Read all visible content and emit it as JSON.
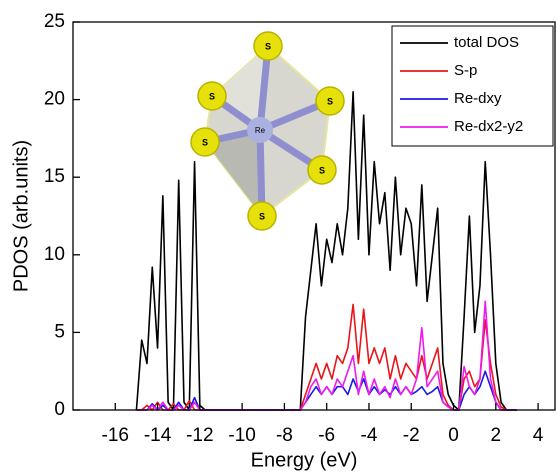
{
  "chart_data": {
    "type": "line",
    "xlabel": "Energy (eV)",
    "ylabel": "PDOS (arb.units)",
    "x": [
      -15,
      -14.75,
      -14.5,
      -14.25,
      -14,
      -13.75,
      -13.5,
      -13.25,
      -13,
      -12.75,
      -12.5,
      -12.25,
      -12,
      -11.75,
      -11.5,
      -11.25,
      -11,
      -10.75,
      -10.5,
      -10.25,
      -10,
      -9.75,
      -9.5,
      -9.25,
      -9,
      -8.75,
      -8.5,
      -8.25,
      -8,
      -7.75,
      -7.5,
      -7.25,
      -7,
      -6.75,
      -6.5,
      -6.25,
      -6,
      -5.75,
      -5.5,
      -5.25,
      -5,
      -4.75,
      -4.5,
      -4.25,
      -4,
      -3.75,
      -3.5,
      -3.25,
      -3,
      -2.75,
      -2.5,
      -2.25,
      -2,
      -1.75,
      -1.5,
      -1.25,
      -1,
      -0.75,
      -0.5,
      -0.25,
      0,
      0.25,
      0.5,
      0.75,
      1,
      1.25,
      1.5,
      1.75,
      2,
      2.25,
      2.5,
      2.75,
      3
    ],
    "series": [
      {
        "name": "total DOS",
        "color": "#000000",
        "values": [
          0,
          4.5,
          3,
          9.2,
          4,
          13.8,
          0.5,
          0,
          14.8,
          0.5,
          0,
          16,
          0.3,
          0,
          0,
          0,
          0,
          0,
          0,
          0,
          0,
          0,
          0,
          0,
          0,
          0,
          0,
          0,
          0,
          0,
          0,
          0,
          6,
          9,
          12,
          8,
          11,
          9.5,
          12,
          10,
          13,
          20.5,
          11,
          19,
          10,
          16,
          12,
          14,
          9,
          15,
          10,
          13,
          12,
          8,
          14.5,
          7,
          10,
          13,
          3,
          1,
          0.3,
          0,
          6,
          12.5,
          5,
          8,
          16,
          10,
          3,
          0.5,
          0,
          0,
          0
        ]
      },
      {
        "name": "S-p",
        "color": "#e8161b",
        "values": [
          0,
          0,
          0.3,
          0,
          0.5,
          0,
          0,
          0.4,
          0,
          0,
          0.6,
          0,
          0,
          0,
          0,
          0,
          0,
          0,
          0,
          0,
          0,
          0,
          0,
          0,
          0,
          0,
          0,
          0,
          0,
          0,
          0,
          0,
          1,
          2,
          3,
          2,
          3,
          2,
          3.5,
          3,
          4,
          6.8,
          3,
          6.5,
          3,
          4,
          3,
          4,
          2,
          3.5,
          2,
          3,
          2.5,
          2,
          3.5,
          2,
          3,
          4,
          1,
          0.3,
          0,
          0,
          2,
          2.5,
          1.5,
          2,
          5.8,
          3,
          1,
          0.2,
          0,
          0,
          0
        ]
      },
      {
        "name": "Re-dxy",
        "color": "#1a1ae6",
        "values": [
          0,
          0,
          0,
          0.4,
          0,
          0.3,
          0,
          0,
          0.5,
          0,
          0,
          0.8,
          0,
          0,
          0,
          0,
          0,
          0,
          0,
          0,
          0,
          0,
          0,
          0,
          0,
          0,
          0,
          0,
          0,
          0,
          0,
          0,
          0.5,
          1,
          1.5,
          1,
          1.5,
          1,
          1.5,
          1.5,
          1,
          2,
          1.2,
          2,
          1,
          1.5,
          1,
          1.3,
          1,
          1.5,
          1,
          1.5,
          1,
          1.2,
          1.5,
          1,
          1.2,
          1.5,
          0.5,
          0.2,
          0,
          0,
          1,
          1.5,
          1,
          1.5,
          2.5,
          1.5,
          0.5,
          0,
          0,
          0,
          0
        ]
      },
      {
        "name": "Re-dx2-y2",
        "color": "#ee1aee",
        "values": [
          0,
          0,
          0,
          0.3,
          0,
          0.5,
          0,
          0,
          0.3,
          0,
          0,
          0.5,
          0,
          0,
          0,
          0,
          0,
          0,
          0,
          0,
          0,
          0,
          0,
          0,
          0,
          0,
          0,
          0,
          0,
          0,
          0,
          0,
          0.5,
          1.5,
          2,
          1,
          1.5,
          1,
          2,
          1.5,
          2.5,
          3.5,
          1,
          2.5,
          1,
          2,
          1,
          1.5,
          0.8,
          2,
          1,
          1.5,
          1,
          2,
          5.3,
          1.5,
          2,
          2.5,
          0.5,
          0.2,
          0,
          0,
          2.8,
          1.5,
          1,
          2,
          7,
          2,
          0.5,
          0,
          0,
          0,
          0
        ]
      }
    ],
    "xlim": [
      -18,
      4.8
    ],
    "ylim": [
      0,
      25
    ],
    "xticks": [
      -16,
      -14,
      -12,
      -10,
      -8,
      -6,
      -4,
      -2,
      0,
      2,
      4
    ],
    "yticks": [
      0,
      5,
      10,
      15,
      20,
      25
    ],
    "legend": "upper right"
  },
  "inset": {
    "atoms": [
      "S",
      "S",
      "S",
      "S",
      "S",
      "S"
    ],
    "center": "Re"
  }
}
